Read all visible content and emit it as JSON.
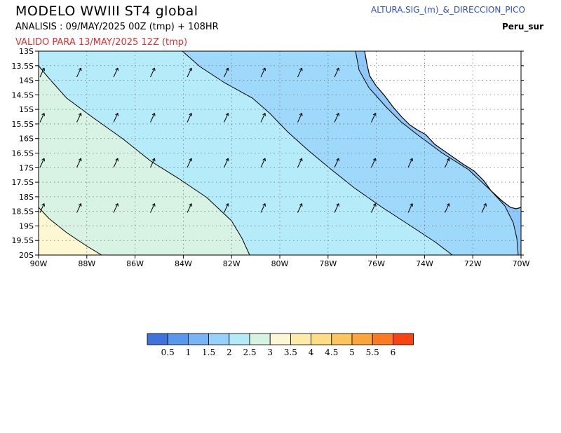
{
  "header": {
    "title": "MODELO  WWIII  ST4  global",
    "subtitle": "ANALISIS : 09/MAY/2025 00Z  (tmp) + 108HR",
    "valid": "VALIDO PARA  13/MAY/2025 12Z  (tmp)",
    "variable": "ALTURA.SIG_(m)_&_DIRECCION_PICO",
    "region": "Peru_sur"
  },
  "map": {
    "lat_labels": [
      "13S",
      "13.5S",
      "14S",
      "14.5S",
      "15S",
      "15.5S",
      "16S",
      "16.5S",
      "17S",
      "17.5S",
      "18S",
      "18.5S",
      "19S",
      "19.5S",
      "20S"
    ],
    "lon_labels": [
      "90W",
      "88W",
      "86W",
      "84W",
      "82W",
      "80W",
      "78W",
      "76W",
      "74W",
      "72W",
      "70W"
    ],
    "zone_colors": {
      "1-1.5": "#8ec8f8",
      "1.5-2": "#9ed8fa",
      "2-2.5": "#b6ecfa",
      "2.5-3": "#d8f2e4",
      "3-3.5": "#fdf8d2"
    },
    "land_color": "#ffffff",
    "arrow_color": "#000000",
    "wave_direction": "north-east"
  },
  "legend": {
    "colors": [
      "#3f73d9",
      "#5898ec",
      "#78b4f6",
      "#98d2fa",
      "#b2eaf8",
      "#d6f2e2",
      "#fdf7d6",
      "#fdeca8",
      "#fedd84",
      "#fdc55e",
      "#fca43e",
      "#fc7a22",
      "#fa4410"
    ],
    "labels": [
      "0.5",
      "1",
      "1.5",
      "2",
      "2.5",
      "3",
      "3.5",
      "4",
      "4.5",
      "5",
      "5.5",
      "6"
    ]
  }
}
